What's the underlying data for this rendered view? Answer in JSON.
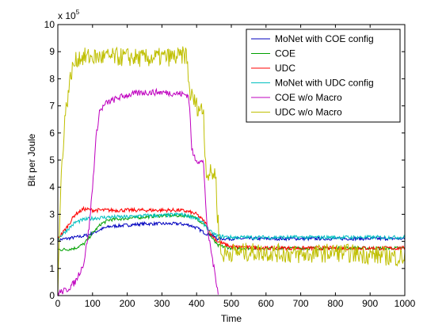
{
  "chart_data": {
    "type": "line",
    "xlabel": "Time",
    "ylabel": "Bit per Joule",
    "multiplier_label": "x 10",
    "multiplier_exponent": "5",
    "xlim": [
      0,
      1000
    ],
    "ylim": [
      0,
      10
    ],
    "x_ticks": [
      0,
      100,
      200,
      300,
      400,
      500,
      600,
      700,
      800,
      900,
      1000
    ],
    "y_ticks": [
      0,
      1,
      2,
      3,
      4,
      5,
      6,
      7,
      8,
      9,
      10
    ],
    "grid": false,
    "legend_position": "top-right",
    "series": [
      {
        "name": "MoNet with COE config",
        "color": "#0000bf",
        "points": [
          [
            0,
            2.05
          ],
          [
            25,
            2.1
          ],
          [
            50,
            2.15
          ],
          [
            75,
            2.2
          ],
          [
            100,
            2.3
          ],
          [
            125,
            2.45
          ],
          [
            150,
            2.55
          ],
          [
            200,
            2.6
          ],
          [
            250,
            2.65
          ],
          [
            300,
            2.65
          ],
          [
            350,
            2.65
          ],
          [
            380,
            2.6
          ],
          [
            400,
            2.5
          ],
          [
            425,
            2.3
          ],
          [
            440,
            2.25
          ],
          [
            460,
            2.1
          ],
          [
            500,
            2.1
          ],
          [
            600,
            2.1
          ],
          [
            700,
            2.1
          ],
          [
            800,
            2.1
          ],
          [
            900,
            2.1
          ],
          [
            1000,
            2.1
          ]
        ],
        "noise": 0.06
      },
      {
        "name": "COE",
        "color": "#00a000",
        "points": [
          [
            0,
            1.7
          ],
          [
            25,
            1.7
          ],
          [
            50,
            1.75
          ],
          [
            75,
            1.9
          ],
          [
            100,
            2.3
          ],
          [
            125,
            2.65
          ],
          [
            150,
            2.8
          ],
          [
            200,
            2.85
          ],
          [
            250,
            2.9
          ],
          [
            300,
            2.95
          ],
          [
            350,
            2.95
          ],
          [
            375,
            2.95
          ],
          [
            400,
            2.85
          ],
          [
            425,
            2.6
          ],
          [
            440,
            2.2
          ],
          [
            460,
            1.85
          ],
          [
            500,
            1.75
          ],
          [
            600,
            1.75
          ],
          [
            700,
            1.75
          ],
          [
            800,
            1.75
          ],
          [
            900,
            1.75
          ],
          [
            1000,
            1.75
          ]
        ],
        "noise": 0.06
      },
      {
        "name": "UDC",
        "color": "#ff0000",
        "points": [
          [
            0,
            2.1
          ],
          [
            25,
            2.5
          ],
          [
            50,
            3.0
          ],
          [
            75,
            3.2
          ],
          [
            100,
            3.15
          ],
          [
            150,
            3.15
          ],
          [
            200,
            3.15
          ],
          [
            250,
            3.15
          ],
          [
            300,
            3.15
          ],
          [
            350,
            3.15
          ],
          [
            375,
            3.1
          ],
          [
            400,
            3.0
          ],
          [
            425,
            2.7
          ],
          [
            440,
            2.3
          ],
          [
            460,
            2.0
          ],
          [
            500,
            1.8
          ],
          [
            600,
            1.75
          ],
          [
            700,
            1.75
          ],
          [
            800,
            1.75
          ],
          [
            900,
            1.75
          ],
          [
            1000,
            1.75
          ]
        ],
        "noise": 0.07
      },
      {
        "name": "MoNet with UDC config",
        "color": "#00bfbf",
        "points": [
          [
            0,
            2.1
          ],
          [
            25,
            2.4
          ],
          [
            50,
            2.7
          ],
          [
            75,
            2.8
          ],
          [
            100,
            2.85
          ],
          [
            150,
            2.9
          ],
          [
            200,
            2.9
          ],
          [
            250,
            2.95
          ],
          [
            300,
            2.95
          ],
          [
            350,
            3.0
          ],
          [
            375,
            2.95
          ],
          [
            400,
            2.85
          ],
          [
            425,
            2.6
          ],
          [
            440,
            2.35
          ],
          [
            460,
            2.2
          ],
          [
            500,
            2.15
          ],
          [
            600,
            2.15
          ],
          [
            700,
            2.15
          ],
          [
            800,
            2.15
          ],
          [
            900,
            2.15
          ],
          [
            1000,
            2.15
          ]
        ],
        "noise": 0.07
      },
      {
        "name": "COE w/o Macro",
        "color": "#bf00bf",
        "points": [
          [
            0,
            0.1
          ],
          [
            25,
            0.2
          ],
          [
            50,
            0.5
          ],
          [
            75,
            1.2
          ],
          [
            90,
            2.5
          ],
          [
            100,
            4.0
          ],
          [
            110,
            5.8
          ],
          [
            120,
            6.8
          ],
          [
            140,
            7.1
          ],
          [
            175,
            7.3
          ],
          [
            200,
            7.4
          ],
          [
            250,
            7.5
          ],
          [
            300,
            7.5
          ],
          [
            350,
            7.45
          ],
          [
            375,
            7.4
          ],
          [
            380,
            7.0
          ],
          [
            385,
            5.5
          ],
          [
            390,
            5.2
          ],
          [
            400,
            5.0
          ],
          [
            420,
            4.9
          ],
          [
            430,
            2.5
          ],
          [
            440,
            1.8
          ],
          [
            450,
            1.0
          ],
          [
            460,
            0.3
          ],
          [
            463,
            0
          ]
        ],
        "noise": 0.12
      },
      {
        "name": "UDC w/o Macro",
        "color": "#bfbf00",
        "points": [
          [
            0,
            0.2
          ],
          [
            5,
            2.5
          ],
          [
            10,
            4.5
          ],
          [
            20,
            6.5
          ],
          [
            30,
            7.5
          ],
          [
            40,
            8.3
          ],
          [
            50,
            8.6
          ],
          [
            60,
            8.8
          ],
          [
            100,
            8.8
          ],
          [
            150,
            8.8
          ],
          [
            200,
            8.8
          ],
          [
            250,
            8.75
          ],
          [
            300,
            8.8
          ],
          [
            350,
            8.8
          ],
          [
            370,
            8.9
          ],
          [
            375,
            8.3
          ],
          [
            380,
            7.5
          ],
          [
            400,
            7.0
          ],
          [
            420,
            6.8
          ],
          [
            425,
            5.0
          ],
          [
            430,
            4.5
          ],
          [
            455,
            4.5
          ],
          [
            460,
            3.0
          ],
          [
            470,
            1.5
          ],
          [
            500,
            1.6
          ],
          [
            600,
            1.6
          ],
          [
            700,
            1.5
          ],
          [
            800,
            1.6
          ],
          [
            900,
            1.5
          ],
          [
            1000,
            1.4
          ]
        ],
        "noise": 0.35
      }
    ]
  }
}
